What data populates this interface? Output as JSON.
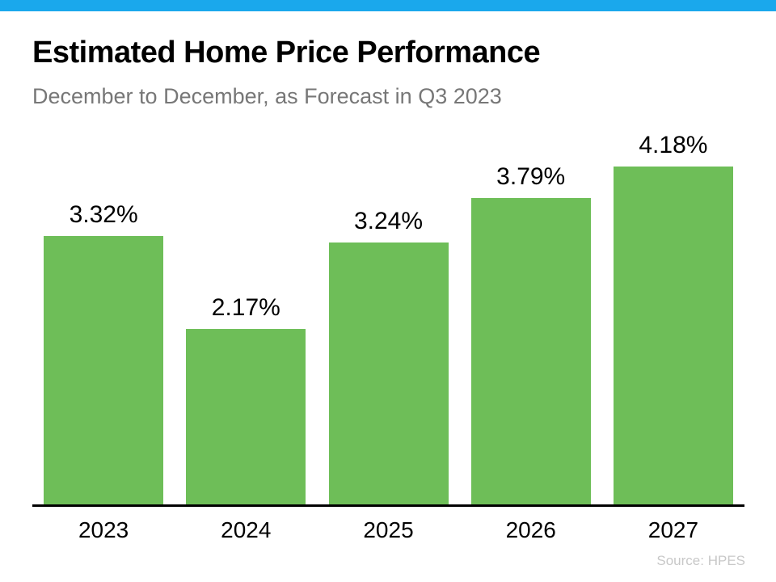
{
  "colors": {
    "accent_bar": "#1AA8EC",
    "bar_fill": "#6EBE58",
    "axis": "#000000",
    "subtitle_text": "#777777",
    "source_text": "#C8C8C8"
  },
  "header": {
    "title": "Estimated Home Price Performance",
    "subtitle": "December to December, as Forecast in Q3 2023"
  },
  "chart_data": {
    "type": "bar",
    "title": "Estimated Home Price Performance",
    "subtitle": "December to December, as Forecast in Q3 2023",
    "categories": [
      "2023",
      "2024",
      "2025",
      "2026",
      "2027"
    ],
    "values": [
      3.32,
      2.17,
      3.24,
      3.79,
      4.18
    ],
    "value_labels": [
      "3.32%",
      "2.17%",
      "3.24%",
      "3.79%",
      "4.18%"
    ],
    "xlabel": "",
    "ylabel": "",
    "ylim": [
      0,
      4.67
    ],
    "grid": false,
    "legend": false,
    "bar_color": "#6EBE58"
  },
  "footer": {
    "source": "Source: HPES"
  }
}
